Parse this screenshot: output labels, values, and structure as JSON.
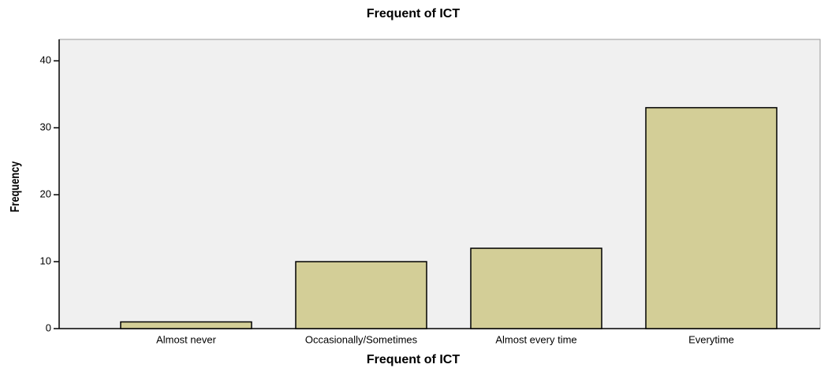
{
  "chart_data": {
    "type": "bar",
    "title": "Frequent of ICT",
    "x_label": "Frequent of ICT",
    "y_label": "Frequency",
    "categories": [
      "Almost never",
      "Occasionally/Sometimes",
      "Almost every time",
      "Everytime"
    ],
    "values": [
      1,
      10,
      12,
      33
    ],
    "color": "#d3ce97",
    "ylim": [
      0,
      43.2
    ],
    "yticks": [
      0,
      10,
      20,
      30,
      40
    ],
    "grid": false
  }
}
